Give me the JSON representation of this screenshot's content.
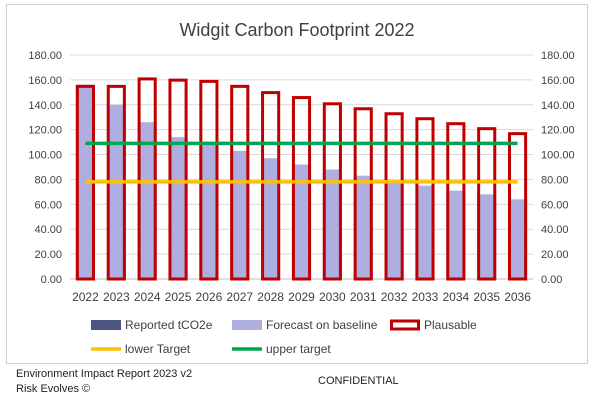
{
  "chart_data": {
    "type": "bar",
    "title": "Widgit Carbon Footprint 2022",
    "categories": [
      "2022",
      "2023",
      "2024",
      "2025",
      "2026",
      "2027",
      "2028",
      "2029",
      "2030",
      "2031",
      "2032",
      "2033",
      "2034",
      "2035",
      "2036"
    ],
    "ylim": [
      0,
      180
    ],
    "yticks": [
      "0.00",
      "20.00",
      "40.00",
      "60.00",
      "80.00",
      "100.00",
      "120.00",
      "140.00",
      "160.00",
      "180.00"
    ],
    "grid": true,
    "legend_position": "bottom",
    "series": [
      {
        "name": "Reported tCO2e",
        "kind": "bar",
        "color": "#4a5582",
        "values": [
          156,
          null,
          null,
          null,
          null,
          null,
          null,
          null,
          null,
          null,
          null,
          null,
          null,
          null,
          null
        ]
      },
      {
        "name": "Forecast on baseline",
        "kind": "bar",
        "color": "#aeaee0",
        "values": [
          156,
          140,
          126,
          114,
          108,
          103,
          97,
          92,
          88,
          83,
          79,
          75,
          71,
          68,
          64
        ]
      },
      {
        "name": "Plausable",
        "kind": "bar-outline",
        "color": "#c00000",
        "values": [
          156,
          156,
          162,
          161,
          160,
          156,
          151,
          147,
          142,
          138,
          134,
          130,
          126,
          122,
          118
        ]
      },
      {
        "name": "lower Target",
        "kind": "line",
        "color": "#ffc000",
        "values": [
          78,
          78,
          78,
          78,
          78,
          78,
          78,
          78,
          78,
          78,
          78,
          78,
          78,
          78,
          78
        ]
      },
      {
        "name": "upper target",
        "kind": "line",
        "color": "#00a550",
        "values": [
          109,
          109,
          109,
          109,
          109,
          109,
          109,
          109,
          109,
          109,
          109,
          109,
          109,
          109,
          109
        ]
      }
    ]
  },
  "footer": {
    "report": "Environment Impact Report 2023 v2",
    "copyright": "Risk Evolves ©",
    "confidential": "CONFIDENTIAL"
  }
}
